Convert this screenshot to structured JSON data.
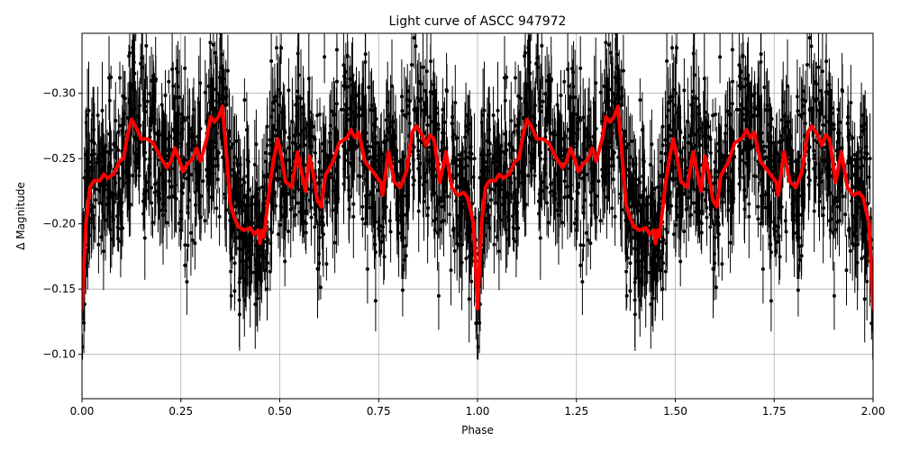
{
  "chart_data": {
    "type": "scatter",
    "title": "Light curve of ASCC 947972",
    "xlabel": "Phase",
    "ylabel": "Δ Magnitude",
    "xlim": [
      0.0,
      2.0
    ],
    "ylim": [
      -0.066,
      -0.346
    ],
    "y_inverted": true,
    "grid": true,
    "legend": null,
    "xticks": [
      "0.00",
      "0.25",
      "0.50",
      "0.75",
      "1.00",
      "1.25",
      "1.50",
      "1.75",
      "2.00"
    ],
    "xtick_values": [
      0.0,
      0.25,
      0.5,
      0.75,
      1.0,
      1.25,
      1.5,
      1.75,
      2.0
    ],
    "yticks": [
      "−0.30",
      "−0.25",
      "−0.20",
      "−0.15",
      "−0.10"
    ],
    "ytick_values": [
      -0.3,
      -0.25,
      -0.2,
      -0.15,
      -0.1
    ],
    "series": [
      {
        "name": "observations",
        "kind": "errorbar-scatter",
        "color": "#000000",
        "description": "Dense phase-folded photometry with vertical error bars, repeated for phase 0-1 and 1-2; magnitudes scatter roughly between -0.08 and -0.35 around the smoothed curve"
      },
      {
        "name": "smoothed model",
        "kind": "line",
        "color": "#ff0000",
        "linewidth": 4,
        "phase": [
          0.0,
          0.01,
          0.02,
          0.03,
          0.045,
          0.055,
          0.065,
          0.08,
          0.095,
          0.105,
          0.115,
          0.125,
          0.135,
          0.15,
          0.165,
          0.18,
          0.2,
          0.215,
          0.225,
          0.235,
          0.245,
          0.255,
          0.265,
          0.28,
          0.29,
          0.3,
          0.315,
          0.325,
          0.335,
          0.345,
          0.355,
          0.365,
          0.375,
          0.385,
          0.395,
          0.41,
          0.425,
          0.435,
          0.445,
          0.45,
          0.455,
          0.46,
          0.475,
          0.485,
          0.495,
          0.505,
          0.515,
          0.53,
          0.545,
          0.555,
          0.565,
          0.575,
          0.585,
          0.595,
          0.605,
          0.615,
          0.635,
          0.65,
          0.67,
          0.68,
          0.69,
          0.7,
          0.715,
          0.74,
          0.755,
          0.76,
          0.775,
          0.79,
          0.805,
          0.82,
          0.835,
          0.845,
          0.86,
          0.87,
          0.88,
          0.89,
          0.905,
          0.92,
          0.935,
          0.95,
          0.965,
          0.975,
          0.99,
          1.0
        ],
        "magnitude": [
          -0.135,
          -0.2,
          -0.228,
          -0.233,
          -0.233,
          -0.238,
          -0.235,
          -0.238,
          -0.248,
          -0.25,
          -0.268,
          -0.28,
          -0.275,
          -0.265,
          -0.265,
          -0.262,
          -0.25,
          -0.243,
          -0.248,
          -0.258,
          -0.25,
          -0.24,
          -0.245,
          -0.25,
          -0.258,
          -0.248,
          -0.265,
          -0.282,
          -0.278,
          -0.282,
          -0.29,
          -0.255,
          -0.215,
          -0.205,
          -0.198,
          -0.195,
          -0.197,
          -0.192,
          -0.195,
          -0.185,
          -0.195,
          -0.19,
          -0.23,
          -0.25,
          -0.265,
          -0.25,
          -0.232,
          -0.228,
          -0.255,
          -0.24,
          -0.225,
          -0.252,
          -0.238,
          -0.218,
          -0.213,
          -0.237,
          -0.248,
          -0.262,
          -0.266,
          -0.272,
          -0.266,
          -0.27,
          -0.248,
          -0.238,
          -0.232,
          -0.222,
          -0.255,
          -0.232,
          -0.228,
          -0.24,
          -0.27,
          -0.275,
          -0.268,
          -0.26,
          -0.268,
          -0.265,
          -0.232,
          -0.255,
          -0.228,
          -0.222,
          -0.224,
          -0.22,
          -0.2,
          -0.135
        ],
        "repeats_with_period": 1.0
      }
    ]
  },
  "colors": {
    "background": "#ffffff",
    "grid": "#b0b0b0",
    "points": "#000000",
    "model": "#ff0000"
  }
}
